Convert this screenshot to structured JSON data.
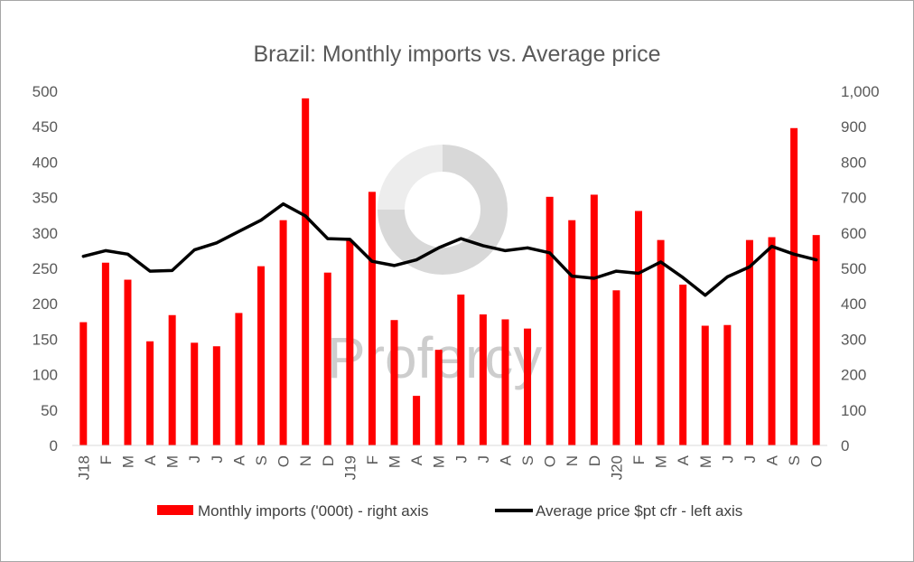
{
  "chart_data": {
    "type": "bar",
    "title": "Brazil: Monthly imports vs. Average price",
    "watermark": "Profercy",
    "categories": [
      "J18",
      "F",
      "M",
      "A",
      "M",
      "J",
      "J",
      "A",
      "S",
      "O",
      "N",
      "D",
      "J19",
      "F",
      "M",
      "A",
      "M",
      "J",
      "J",
      "A",
      "S",
      "O",
      "N",
      "D",
      "J20",
      "F",
      "M",
      "A",
      "M",
      "J",
      "J",
      "A",
      "S",
      "O"
    ],
    "left_axis": {
      "ylim": [
        0,
        500
      ],
      "ticks": [
        "0",
        "50",
        "100",
        "150",
        "200",
        "250",
        "300",
        "350",
        "400",
        "450",
        "500"
      ]
    },
    "right_axis": {
      "ylim": [
        0,
        1000
      ],
      "ticks": [
        "0",
        "100",
        "200",
        "300",
        "400",
        "500",
        "600",
        "700",
        "800",
        "900",
        "1,000"
      ]
    },
    "series": [
      {
        "name": "Monthly imports ('000t) - right axis",
        "type": "bar",
        "axis": "right",
        "color": "#ff0000",
        "values": [
          348,
          516,
          468,
          294,
          368,
          290,
          280,
          374,
          506,
          636,
          980,
          488,
          578,
          716,
          354,
          140,
          270,
          426,
          370,
          356,
          330,
          702,
          636,
          708,
          438,
          662,
          580,
          454,
          338,
          340,
          580,
          588,
          896,
          594
        ]
      },
      {
        "name": "Average price $pt cfr - left axis",
        "type": "line",
        "axis": "left",
        "color": "#000000",
        "values": [
          267,
          275,
          270,
          246,
          247,
          276,
          286,
          302,
          318,
          341,
          324,
          292,
          291,
          260,
          254,
          262,
          279,
          292,
          282,
          275,
          279,
          272,
          239,
          236,
          246,
          243,
          259,
          237,
          212,
          238,
          252,
          281,
          270,
          262
        ]
      }
    ],
    "legend": {
      "position": "bottom"
    }
  }
}
